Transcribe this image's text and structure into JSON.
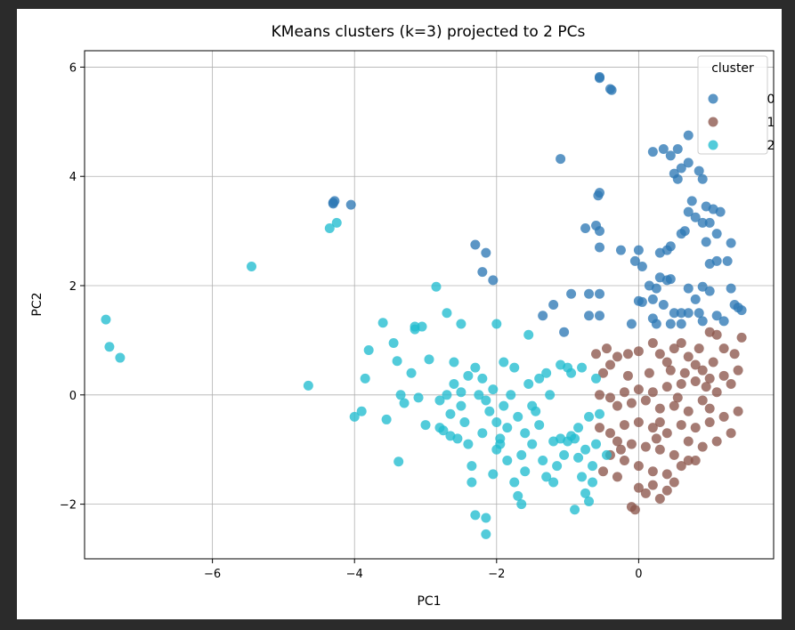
{
  "chart_data": {
    "type": "scatter",
    "title": "KMeans clusters (k=3) projected to 2 PCs",
    "xlabel": "PC1",
    "ylabel": "PC2",
    "xlim": [
      -7.8,
      1.9
    ],
    "ylim": [
      -3.0,
      6.3
    ],
    "xticks": [
      -6,
      -4,
      -2,
      0
    ],
    "xtick_labels": [
      "−6",
      "−4",
      "−2",
      "0"
    ],
    "yticks": [
      -2,
      0,
      2,
      4,
      6
    ],
    "ytick_labels": [
      "−2",
      "0",
      "2",
      "4",
      "6"
    ],
    "grid": true,
    "legend": {
      "title": "cluster",
      "placement": "top-right"
    },
    "series": [
      {
        "name": "0",
        "color": "#2e78b5",
        "points": [
          [
            -0.55,
            5.82
          ],
          [
            -0.55,
            5.8
          ],
          [
            -0.4,
            5.6
          ],
          [
            -0.38,
            5.58
          ],
          [
            0.35,
            4.5
          ],
          [
            0.55,
            4.5
          ],
          [
            0.45,
            4.38
          ],
          [
            0.7,
            4.75
          ],
          [
            0.2,
            4.45
          ],
          [
            -1.1,
            4.32
          ],
          [
            0.5,
            4.05
          ],
          [
            0.6,
            4.15
          ],
          [
            0.7,
            4.25
          ],
          [
            0.85,
            4.1
          ],
          [
            0.55,
            3.95
          ],
          [
            0.9,
            3.95
          ],
          [
            0.75,
            3.55
          ],
          [
            0.7,
            3.35
          ],
          [
            0.95,
            3.45
          ],
          [
            1.05,
            3.4
          ],
          [
            1.15,
            3.35
          ],
          [
            0.8,
            3.25
          ],
          [
            0.9,
            3.15
          ],
          [
            1.0,
            3.15
          ],
          [
            0.65,
            3.0
          ],
          [
            0.6,
            2.95
          ],
          [
            1.1,
            2.95
          ],
          [
            0.95,
            2.8
          ],
          [
            1.3,
            2.78
          ],
          [
            0.45,
            2.72
          ],
          [
            -0.55,
            3.7
          ],
          [
            -0.57,
            3.65
          ],
          [
            -0.6,
            3.1
          ],
          [
            -0.55,
            3.0
          ],
          [
            -0.75,
            3.05
          ],
          [
            -0.55,
            2.7
          ],
          [
            -0.25,
            2.65
          ],
          [
            0.0,
            2.65
          ],
          [
            -0.05,
            2.45
          ],
          [
            0.05,
            2.35
          ],
          [
            0.3,
            2.6
          ],
          [
            0.4,
            2.65
          ],
          [
            0.3,
            2.15
          ],
          [
            0.4,
            2.1
          ],
          [
            0.45,
            2.12
          ],
          [
            1.1,
            2.45
          ],
          [
            1.0,
            2.4
          ],
          [
            1.25,
            2.45
          ],
          [
            0.15,
            2.0
          ],
          [
            0.25,
            1.95
          ],
          [
            0.7,
            1.95
          ],
          [
            0.9,
            1.98
          ],
          [
            0.8,
            1.75
          ],
          [
            1.0,
            1.9
          ],
          [
            1.3,
            1.95
          ],
          [
            0.2,
            1.75
          ],
          [
            0.0,
            1.72
          ],
          [
            0.05,
            1.7
          ],
          [
            0.5,
            1.5
          ],
          [
            0.6,
            1.5
          ],
          [
            0.7,
            1.5
          ],
          [
            0.85,
            1.5
          ],
          [
            0.35,
            1.65
          ],
          [
            0.2,
            1.4
          ],
          [
            0.25,
            1.3
          ],
          [
            0.45,
            1.3
          ],
          [
            -0.1,
            1.3
          ],
          [
            1.4,
            1.6
          ],
          [
            1.35,
            1.65
          ],
          [
            1.2,
            1.35
          ],
          [
            1.45,
            1.55
          ],
          [
            -1.35,
            1.45
          ],
          [
            -1.2,
            1.65
          ],
          [
            -0.95,
            1.85
          ],
          [
            -0.7,
            1.85
          ],
          [
            -0.55,
            1.85
          ],
          [
            -0.55,
            1.45
          ],
          [
            -0.7,
            1.45
          ],
          [
            -1.05,
            1.15
          ],
          [
            0.6,
            1.3
          ],
          [
            0.9,
            1.35
          ],
          [
            1.1,
            1.45
          ],
          [
            -2.15,
            2.6
          ],
          [
            -2.3,
            2.75
          ],
          [
            -2.2,
            2.25
          ],
          [
            -2.05,
            2.1
          ],
          [
            -4.3,
            3.52
          ],
          [
            -4.28,
            3.55
          ],
          [
            -4.05,
            3.48
          ],
          [
            -4.3,
            3.5
          ]
        ]
      },
      {
        "name": "1",
        "color": "#8c564b",
        "points": [
          [
            -0.45,
            0.85
          ],
          [
            -0.6,
            0.75
          ],
          [
            -0.4,
            0.55
          ],
          [
            -0.5,
            0.4
          ],
          [
            -0.3,
            0.7
          ],
          [
            -0.15,
            0.75
          ],
          [
            0.0,
            0.8
          ],
          [
            0.2,
            0.95
          ],
          [
            0.3,
            0.75
          ],
          [
            0.4,
            0.6
          ],
          [
            0.5,
            0.85
          ],
          [
            0.6,
            0.95
          ],
          [
            0.7,
            0.7
          ],
          [
            0.8,
            0.55
          ],
          [
            0.9,
            0.45
          ],
          [
            1.0,
            1.15
          ],
          [
            1.1,
            1.1
          ],
          [
            1.2,
            0.85
          ],
          [
            1.35,
            0.75
          ],
          [
            1.45,
            1.05
          ],
          [
            1.4,
            0.45
          ],
          [
            1.2,
            0.35
          ],
          [
            1.0,
            0.3
          ],
          [
            0.8,
            0.25
          ],
          [
            0.6,
            0.2
          ],
          [
            0.4,
            0.15
          ],
          [
            0.2,
            0.05
          ],
          [
            0.0,
            0.1
          ],
          [
            -0.2,
            0.05
          ],
          [
            -0.4,
            -0.05
          ],
          [
            -0.55,
            0.0
          ],
          [
            -0.3,
            -0.2
          ],
          [
            -0.1,
            -0.15
          ],
          [
            0.1,
            -0.1
          ],
          [
            0.3,
            -0.25
          ],
          [
            0.5,
            -0.2
          ],
          [
            0.7,
            -0.3
          ],
          [
            0.9,
            -0.1
          ],
          [
            1.1,
            0.05
          ],
          [
            1.3,
            0.2
          ],
          [
            1.4,
            -0.3
          ],
          [
            1.2,
            -0.4
          ],
          [
            1.0,
            -0.5
          ],
          [
            0.8,
            -0.6
          ],
          [
            0.6,
            -0.55
          ],
          [
            0.4,
            -0.7
          ],
          [
            0.2,
            -0.6
          ],
          [
            0.0,
            -0.5
          ],
          [
            -0.2,
            -0.55
          ],
          [
            -0.4,
            -0.7
          ],
          [
            -0.55,
            -0.6
          ],
          [
            -0.3,
            -0.85
          ],
          [
            -0.1,
            -0.9
          ],
          [
            0.1,
            -0.95
          ],
          [
            0.3,
            -1.0
          ],
          [
            0.5,
            -1.1
          ],
          [
            0.7,
            -1.2
          ],
          [
            0.9,
            -0.95
          ],
          [
            1.1,
            -0.85
          ],
          [
            1.3,
            -0.7
          ],
          [
            -0.4,
            -1.1
          ],
          [
            -0.2,
            -1.2
          ],
          [
            0.0,
            -1.3
          ],
          [
            0.2,
            -1.4
          ],
          [
            0.4,
            -1.45
          ],
          [
            0.6,
            -1.3
          ],
          [
            0.8,
            -1.2
          ],
          [
            -0.5,
            -1.4
          ],
          [
            -0.3,
            -1.5
          ],
          [
            0.0,
            -1.7
          ],
          [
            0.1,
            -1.8
          ],
          [
            0.2,
            -1.65
          ],
          [
            0.3,
            -1.9
          ],
          [
            0.4,
            -1.75
          ],
          [
            0.5,
            -1.6
          ],
          [
            -0.1,
            -2.05
          ],
          [
            -0.05,
            -2.1
          ],
          [
            0.45,
            0.45
          ],
          [
            0.65,
            0.4
          ],
          [
            0.85,
            0.85
          ],
          [
            1.05,
            0.6
          ],
          [
            0.15,
            0.4
          ],
          [
            -0.15,
            0.35
          ],
          [
            0.3,
            -0.5
          ],
          [
            0.7,
            -0.85
          ],
          [
            1.0,
            -0.25
          ],
          [
            0.55,
            -0.05
          ],
          [
            0.95,
            0.15
          ],
          [
            0.25,
            -0.8
          ],
          [
            -0.25,
            -1.0
          ]
        ]
      },
      {
        "name": "2",
        "color": "#21bdd0",
        "points": [
          [
            -7.5,
            1.38
          ],
          [
            -7.45,
            0.88
          ],
          [
            -7.3,
            0.68
          ],
          [
            -5.45,
            2.35
          ],
          [
            -4.25,
            3.15
          ],
          [
            -4.35,
            3.05
          ],
          [
            -4.65,
            0.17
          ],
          [
            -4.0,
            -0.4
          ],
          [
            -3.9,
            -0.3
          ],
          [
            -3.85,
            0.3
          ],
          [
            -3.8,
            0.82
          ],
          [
            -3.6,
            1.32
          ],
          [
            -3.55,
            -0.45
          ],
          [
            -3.45,
            0.95
          ],
          [
            -3.4,
            0.62
          ],
          [
            -3.38,
            -1.22
          ],
          [
            -3.35,
            0.0
          ],
          [
            -3.3,
            -0.15
          ],
          [
            -3.2,
            0.4
          ],
          [
            -3.15,
            1.2
          ],
          [
            -3.15,
            1.25
          ],
          [
            -3.1,
            -0.05
          ],
          [
            -3.05,
            1.25
          ],
          [
            -2.95,
            0.65
          ],
          [
            -2.85,
            1.98
          ],
          [
            -2.8,
            -0.6
          ],
          [
            -2.75,
            -0.65
          ],
          [
            -2.7,
            0.0
          ],
          [
            -2.7,
            1.5
          ],
          [
            -2.65,
            -0.75
          ],
          [
            -2.6,
            0.6
          ],
          [
            -2.6,
            0.2
          ],
          [
            -2.55,
            -0.8
          ],
          [
            -2.5,
            0.05
          ],
          [
            -2.5,
            1.3
          ],
          [
            -2.45,
            -0.5
          ],
          [
            -2.4,
            -0.9
          ],
          [
            -2.4,
            0.35
          ],
          [
            -2.35,
            -1.3
          ],
          [
            -2.35,
            -1.6
          ],
          [
            -2.3,
            0.5
          ],
          [
            -2.3,
            -2.2
          ],
          [
            -2.25,
            0.0
          ],
          [
            -2.2,
            -0.7
          ],
          [
            -2.15,
            -2.55
          ],
          [
            -2.15,
            -2.25
          ],
          [
            -2.1,
            -0.3
          ],
          [
            -2.05,
            0.1
          ],
          [
            -2.0,
            1.3
          ],
          [
            -2.0,
            -0.5
          ],
          [
            -1.95,
            -0.9
          ],
          [
            -1.9,
            0.6
          ],
          [
            -1.85,
            -1.2
          ],
          [
            -1.8,
            0.0
          ],
          [
            -1.75,
            -1.6
          ],
          [
            -1.7,
            -1.85
          ],
          [
            -1.65,
            -2.0
          ],
          [
            -1.6,
            -1.4
          ],
          [
            -1.55,
            1.1
          ],
          [
            -1.5,
            -0.9
          ],
          [
            -1.45,
            -0.3
          ],
          [
            -1.4,
            0.3
          ],
          [
            -1.35,
            -1.2
          ],
          [
            -1.3,
            -1.5
          ],
          [
            -1.25,
            0.0
          ],
          [
            -1.2,
            -0.85
          ],
          [
            -1.15,
            -1.3
          ],
          [
            -1.1,
            -0.8
          ],
          [
            -1.05,
            -1.1
          ],
          [
            -1.0,
            -0.85
          ],
          [
            -0.95,
            -0.75
          ],
          [
            -0.9,
            -0.8
          ],
          [
            -0.85,
            -1.15
          ],
          [
            -0.8,
            -1.5
          ],
          [
            -0.75,
            -1.8
          ],
          [
            -0.7,
            -1.95
          ],
          [
            -0.65,
            -1.3
          ],
          [
            -0.6,
            -0.9
          ],
          [
            -0.6,
            0.3
          ],
          [
            -0.7,
            -0.4
          ],
          [
            -0.8,
            0.5
          ],
          [
            -0.9,
            -2.1
          ],
          [
            -1.0,
            0.5
          ],
          [
            -1.1,
            0.55
          ],
          [
            -1.3,
            0.4
          ],
          [
            -1.55,
            0.2
          ],
          [
            -1.7,
            -0.4
          ],
          [
            -1.9,
            -0.2
          ],
          [
            -2.2,
            0.3
          ],
          [
            -2.5,
            -0.2
          ],
          [
            -2.0,
            -1.0
          ],
          [
            -1.85,
            -0.6
          ],
          [
            -1.6,
            -0.7
          ],
          [
            -1.4,
            -0.55
          ],
          [
            -1.2,
            -1.6
          ],
          [
            -0.85,
            -0.6
          ],
          [
            -0.55,
            -0.35
          ],
          [
            -0.45,
            -1.1
          ],
          [
            -0.65,
            -1.6
          ],
          [
            -2.8,
            -0.1
          ],
          [
            -1.75,
            0.5
          ],
          [
            -1.95,
            -0.8
          ],
          [
            -2.15,
            -0.1
          ],
          [
            -1.5,
            -0.2
          ],
          [
            -0.95,
            0.4
          ],
          [
            -2.05,
            -1.45
          ],
          [
            -1.65,
            -1.1
          ],
          [
            -0.75,
            -1.0
          ],
          [
            -2.65,
            -0.35
          ],
          [
            -3.0,
            -0.55
          ]
        ]
      }
    ]
  }
}
